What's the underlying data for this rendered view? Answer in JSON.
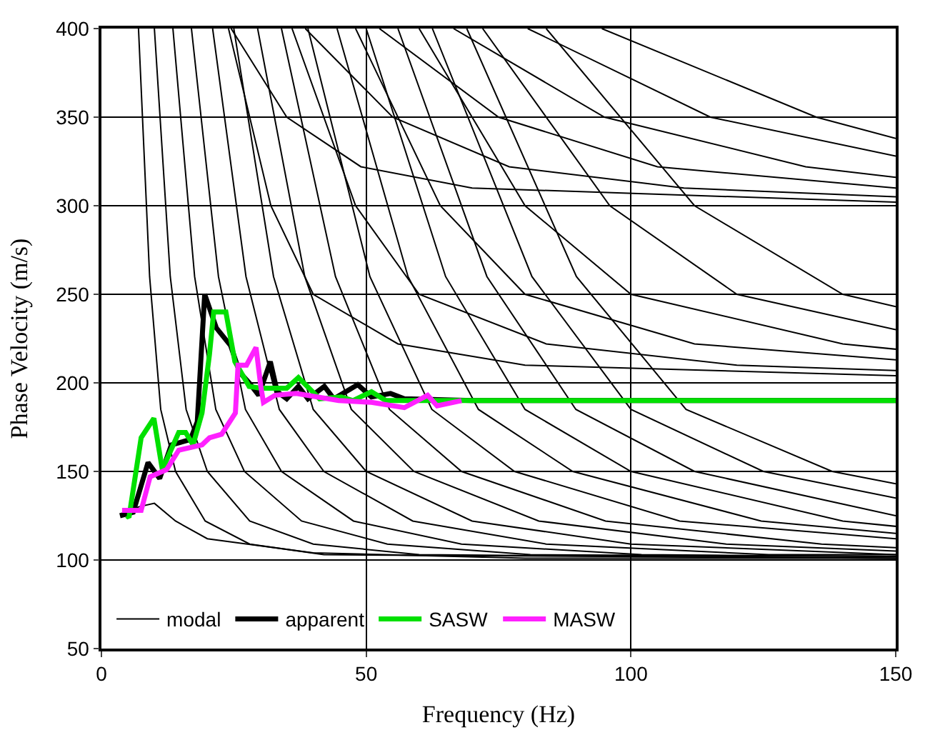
{
  "chart_data": {
    "type": "line",
    "xlabel": "Frequency (Hz)",
    "ylabel": "Phase Velocity (m/s)",
    "xlim": [
      0,
      150
    ],
    "xticks": [
      0,
      50,
      100,
      150
    ],
    "ylim": [
      50,
      400
    ],
    "yticks": [
      50,
      100,
      150,
      200,
      250,
      300,
      350,
      400
    ],
    "grid": true,
    "legend": "bottom left",
    "marker": "none",
    "line_style": "solid",
    "series": [
      {
        "name": "modal",
        "color": "#000000",
        "x": [
          4,
          7,
          10,
          14,
          20,
          40,
          80,
          150,
          null,
          7,
          9.1,
          11.2,
          14,
          19.6,
          28,
          42,
          150,
          null,
          10,
          13,
          16,
          20,
          28,
          40,
          60,
          150,
          null,
          13.5,
          17.6,
          21.6,
          27,
          37.8,
          54,
          81,
          150,
          null,
          17,
          22.1,
          27.2,
          34,
          47.6,
          68,
          102,
          150,
          null,
          21,
          27.3,
          33.6,
          42,
          58.8,
          84,
          126,
          150,
          null,
          25,
          32.5,
          40,
          50,
          70,
          100,
          150,
          null,
          29.5,
          38.4,
          47.2,
          59,
          82.6,
          118,
          150,
          null,
          34,
          44.2,
          54.4,
          68,
          95.2,
          136,
          150,
          null,
          39,
          50.7,
          62.4,
          78,
          109.2,
          150,
          null,
          44.5,
          57.9,
          71.2,
          89,
          124.6,
          150,
          null,
          50,
          65,
          80,
          100,
          140,
          150,
          null,
          56,
          72.8,
          89.6,
          112,
          150,
          null,
          62.5,
          81.3,
          100,
          125,
          150,
          null,
          69,
          89.7,
          110.4,
          138,
          150,
          null,
          24,
          32,
          40,
          56,
          80,
          150,
          null,
          36,
          48,
          60,
          84,
          120,
          150,
          null,
          48,
          64,
          80,
          112,
          150,
          null,
          60,
          80,
          100,
          140,
          150,
          null,
          72,
          96,
          120,
          150,
          null,
          84,
          112,
          140,
          150,
          null,
          24.5,
          35,
          49,
          70,
          150,
          null,
          38.5,
          55,
          77,
          110,
          150,
          null,
          52.5,
          75,
          105,
          150,
          null,
          66.5,
          95,
          133,
          150,
          null,
          80.5,
          115,
          150,
          null,
          94.5,
          135,
          150
        ],
        "values": [
          125,
          130,
          132,
          122,
          112,
          104,
          101,
          101,
          null,
          400,
          260,
          185,
          150,
          122,
          109,
          103,
          101,
          null,
          400,
          260,
          185,
          150,
          122,
          109,
          103,
          101,
          null,
          400,
          260,
          185,
          150,
          122,
          109,
          103,
          102,
          null,
          400,
          260,
          185,
          150,
          122,
          109,
          103,
          102,
          null,
          400,
          260,
          185,
          150,
          122,
          109,
          103,
          103,
          null,
          400,
          260,
          185,
          150,
          122,
          109,
          103,
          null,
          400,
          260,
          185,
          150,
          122,
          109,
          105,
          null,
          400,
          260,
          185,
          150,
          122,
          109,
          107,
          null,
          400,
          260,
          185,
          150,
          122,
          112,
          null,
          400,
          260,
          185,
          150,
          122,
          115,
          null,
          400,
          260,
          185,
          150,
          122,
          119,
          null,
          400,
          260,
          185,
          150,
          125,
          null,
          400,
          260,
          185,
          150,
          135,
          null,
          400,
          260,
          185,
          150,
          143,
          null,
          400,
          300,
          250,
          222,
          210,
          204,
          null,
          400,
          300,
          250,
          222,
          210,
          207,
          null,
          400,
          300,
          250,
          222,
          213,
          null,
          400,
          300,
          250,
          222,
          219,
          null,
          400,
          300,
          250,
          230,
          null,
          400,
          300,
          250,
          243,
          null,
          400,
          350,
          322,
          310,
          302,
          null,
          400,
          350,
          322,
          310,
          305,
          null,
          400,
          350,
          322,
          310,
          null,
          400,
          350,
          322,
          316,
          null,
          400,
          350,
          328,
          null,
          400,
          350,
          338
        ]
      },
      {
        "name": "apparent",
        "color": "#000000",
        "x": [
          3.5,
          6,
          8.8,
          11,
          13.2,
          16.8,
          18.1,
          19.5,
          21.7,
          24.4,
          26.1,
          27.9,
          29.7,
          31.9,
          33.2,
          35,
          37.2,
          39,
          42.1,
          43.9,
          48.4,
          51,
          54.6,
          57.2,
          70,
          100,
          150
        ],
        "values": [
          125,
          127,
          155,
          146,
          165,
          168,
          178,
          250,
          231,
          221,
          206,
          200,
          193,
          212,
          195,
          191,
          198,
          191,
          198,
          191,
          199,
          192,
          194,
          191,
          190,
          190,
          190
        ]
      },
      {
        "name": "SASW",
        "color": "#00e000",
        "x": [
          4.8,
          5.2,
          7.5,
          9.9,
          11.5,
          14.6,
          15.9,
          17.3,
          19,
          20.4,
          21.2,
          23.5,
          25.2,
          27.9,
          30.1,
          35,
          37.2,
          41.2,
          45.3,
          47.5,
          51,
          53.7,
          70,
          100,
          150
        ],
        "values": [
          125,
          124,
          169,
          180,
          151,
          172,
          172,
          165,
          183,
          216,
          240,
          240,
          212,
          198,
          197,
          197,
          203,
          191,
          192,
          190,
          195,
          190,
          190,
          190,
          190
        ]
      },
      {
        "name": "MASW",
        "color": "#ff20ff",
        "x": [
          3.9,
          7.5,
          9.2,
          12.3,
          14.6,
          19,
          20.4,
          22.7,
          25.3,
          25.8,
          27.4,
          29.2,
          30.1,
          30.6,
          32.8,
          36.8,
          44.8,
          51,
          57.2,
          61.6,
          63.4,
          68
        ],
        "values": [
          128,
          128,
          147,
          151,
          162,
          165,
          169,
          171,
          183,
          210,
          210,
          220,
          198,
          189,
          193,
          194,
          190,
          189,
          186,
          193,
          187,
          190
        ]
      }
    ]
  }
}
